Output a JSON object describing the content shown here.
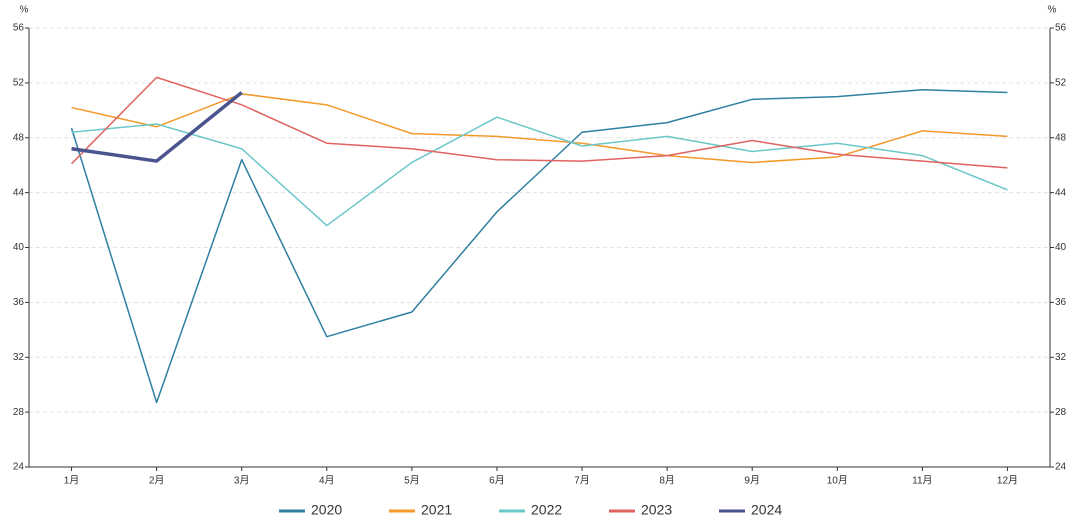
{
  "chart_data": {
    "type": "line",
    "y_unit": "%",
    "y2_unit": "%",
    "categories": [
      "1月",
      "2月",
      "3月",
      "4月",
      "5月",
      "6月",
      "7月",
      "8月",
      "9月",
      "10月",
      "11月",
      "12月"
    ],
    "series": [
      {
        "name": "2020",
        "color": "#2f7fa0",
        "width": 1.5,
        "values": [
          48.7,
          28.7,
          46.4,
          33.5,
          35.3,
          42.6,
          48.4,
          49.1,
          50.8,
          51.0,
          51.5,
          51.3
        ]
      },
      {
        "name": "2021",
        "color": "#f39a2b",
        "width": 1.5,
        "values": [
          50.2,
          48.8,
          51.2,
          50.4,
          48.3,
          48.1,
          47.6,
          46.7,
          46.2,
          46.6,
          48.5,
          48.1
        ]
      },
      {
        "name": "2022",
        "color": "#6cc7c9",
        "width": 1.5,
        "values": [
          48.4,
          49.0,
          47.2,
          41.6,
          46.2,
          49.5,
          47.4,
          48.1,
          47.0,
          47.6,
          46.7,
          44.2
        ]
      },
      {
        "name": "2023",
        "color": "#e0635f",
        "width": 1.5,
        "values": [
          46.1,
          52.4,
          50.4,
          47.6,
          47.2,
          46.4,
          46.3,
          46.7,
          47.8,
          46.8,
          46.3,
          45.8
        ]
      },
      {
        "name": "2024",
        "color": "#4a5590",
        "width": 3.5,
        "values": [
          47.2,
          46.3,
          51.3,
          null,
          null,
          null,
          null,
          null,
          null,
          null,
          null,
          null
        ]
      }
    ],
    "ylim": [
      24,
      56
    ],
    "yticks": [
      24,
      28,
      32,
      36,
      40,
      44,
      48,
      52,
      56
    ],
    "y2lim": [
      24,
      56
    ],
    "y2ticks": [
      24,
      28,
      32,
      36,
      40,
      44,
      48,
      52,
      56
    ],
    "grid": true,
    "legend": "bottom"
  }
}
